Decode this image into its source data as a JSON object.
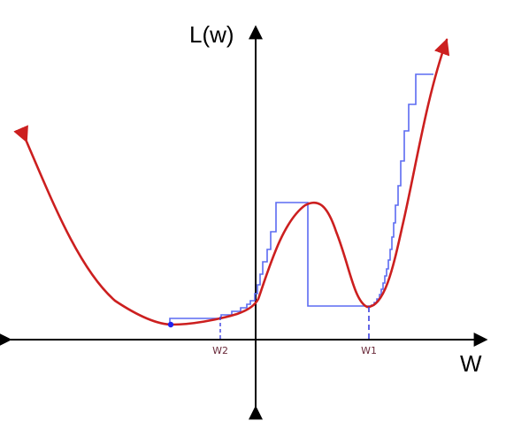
{
  "diagram": {
    "y_axis_label": "L(w)",
    "x_axis_label": "W",
    "markers": [
      {
        "id": "w2",
        "label": "W2"
      },
      {
        "id": "w1",
        "label": "W1"
      }
    ],
    "colors": {
      "loss_curve": "#cc1f1f",
      "descent_path": "#5b6bf2",
      "axes": "#000000",
      "marker_line": "#3a3fe0",
      "marker_label": "#6a2a3a",
      "start_dot": "#2222ee"
    }
  }
}
